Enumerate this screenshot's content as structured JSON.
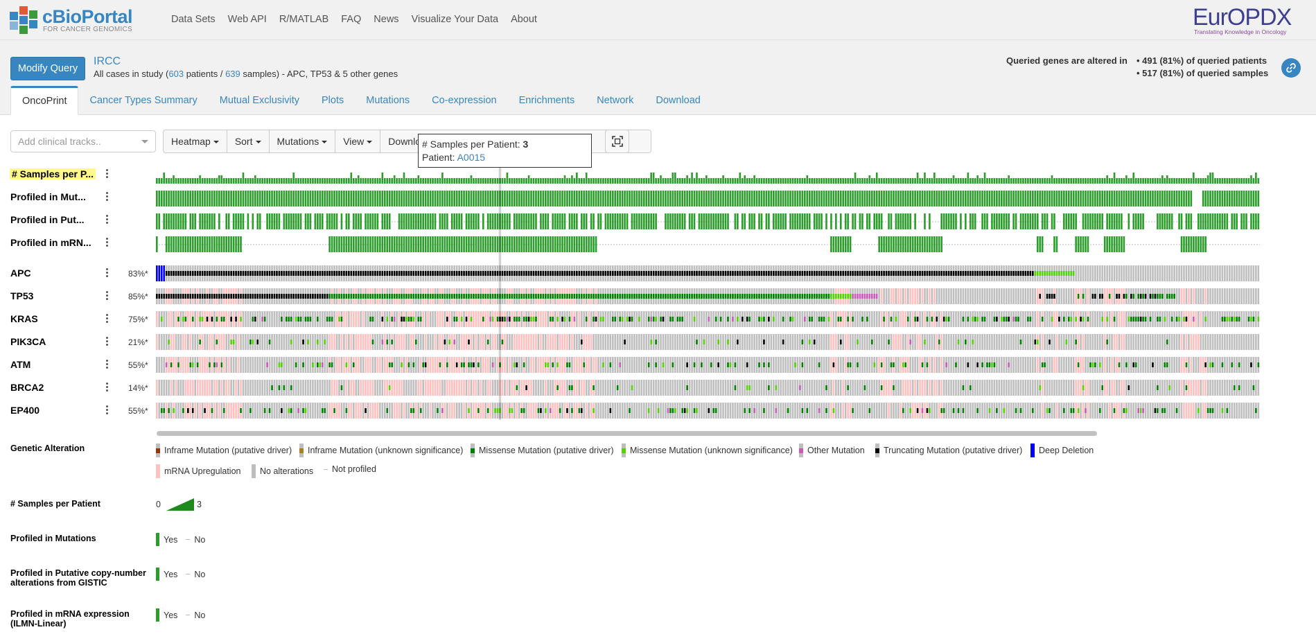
{
  "app": {
    "logo_title": "cBioPortal",
    "logo_subtitle": "FOR CANCER GENOMICS",
    "nav": [
      "Data Sets",
      "Web API",
      "R/MATLAB",
      "FAQ",
      "News",
      "Visualize Your Data",
      "About"
    ],
    "partner_logo_title": "EurOPDX",
    "partner_logo_subtitle": "Translating Knowledge in Oncology"
  },
  "query": {
    "modify_label": "Modify Query",
    "study_name": "IRCC",
    "desc_prefix": "All cases in study (",
    "patients": "603",
    "patients_word": " patients / ",
    "samples": "639",
    "desc_suffix": " samples)  - APC, TP53 & 5 other genes",
    "altered_label": "Queried genes are altered in",
    "altered_patients": "• 491 (81%) of queried patients",
    "altered_samples": "• 517 (81%) of queried samples"
  },
  "tabs": [
    "OncoPrint",
    "Cancer Types Summary",
    "Mutual Exclusivity",
    "Plots",
    "Mutations",
    "Co-expression",
    "Enrichments",
    "Network",
    "Download"
  ],
  "toolbar": {
    "clinical_placeholder": "Add clinical tracks..",
    "buttons": [
      "Heatmap",
      "Sort",
      "Mutations",
      "View",
      "Download"
    ]
  },
  "tooltip": {
    "line1_label": "# Samples per Patient: ",
    "line1_value": "3",
    "line2_label": "Patient: ",
    "line2_value": "A0015"
  },
  "tracks": {
    "clinical": [
      "# Samples per P...",
      "Profiled in Mut...",
      "Profiled in Put...",
      "Profiled in mRN..."
    ],
    "genes": [
      {
        "name": "APC",
        "pct": "83%*"
      },
      {
        "name": "TP53",
        "pct": "85%*"
      },
      {
        "name": "KRAS",
        "pct": "75%*"
      },
      {
        "name": "PIK3CA",
        "pct": "21%*"
      },
      {
        "name": "ATM",
        "pct": "55%*"
      },
      {
        "name": "BRCA2",
        "pct": "14%*"
      },
      {
        "name": "EP400",
        "pct": "55%*"
      }
    ]
  },
  "legend": {
    "genetic_title": "Genetic Alteration",
    "genetic_items": [
      {
        "label": "Inframe Mutation (putative driver)",
        "color": "#993404"
      },
      {
        "label": "Inframe Mutation (unknown significance)",
        "color": "#a68028"
      },
      {
        "label": "Missense Mutation (putative driver)",
        "color": "#008000"
      },
      {
        "label": "Missense Mutation (unknown significance)",
        "color": "#53d400"
      },
      {
        "label": "Other Mutation",
        "color": "#cf58bc"
      },
      {
        "label": "Truncating Mutation (putative driver)",
        "color": "#000000"
      },
      {
        "label": "Deep Deletion",
        "color": "#0000ff"
      },
      {
        "label": "mRNA Upregulation",
        "color": "#ffc0c0"
      },
      {
        "label": "No alterations",
        "color": "#bebebe"
      },
      {
        "label": "Not profiled",
        "color": ""
      }
    ],
    "samples_title": "# Samples per Patient",
    "samples_min": "0",
    "samples_max": "3",
    "profiled_mut_title": "Profiled in Mutations",
    "profiled_cna_title_1": "Profiled in Putative copy-number",
    "profiled_cna_title_2": "alterations from GISTIC",
    "profiled_mrna_title_1": "Profiled in mRNA expression",
    "profiled_mrna_title_2": "(ILMN-Linear)",
    "yes": "Yes",
    "no": "No"
  },
  "colors": {
    "accent": "#3786c2",
    "profiled": "#2b9d2b",
    "no_alteration": "#bebebe",
    "mrna_up": "#ffc0c0"
  }
}
